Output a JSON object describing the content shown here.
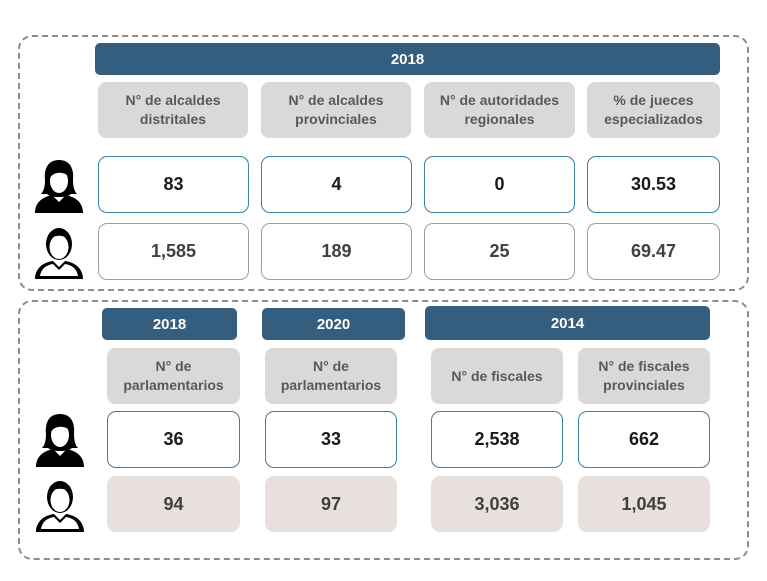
{
  "top": {
    "year": "2018",
    "headers": [
      "N° de alcaldes\ndistritales",
      "N° de alcaldes\nprovinciales",
      "N° de autoridades\nregionales",
      "% de jueces\nespecializados"
    ],
    "women": [
      "83",
      "4",
      "0",
      "30.53"
    ],
    "men": [
      "1,585",
      "189",
      "25",
      "69.47"
    ]
  },
  "bottom": {
    "years": [
      "2018",
      "2020",
      "2014"
    ],
    "headers": [
      "N° de\nparlamentarios",
      "N° de\nparlamentarios",
      "N° de fiscales",
      "N° de fiscales\nprovinciales"
    ],
    "women": [
      "36",
      "33",
      "2,538",
      "662"
    ],
    "men": [
      "94",
      "97",
      "3,036",
      "1,045"
    ]
  },
  "icons": {
    "women": "woman-icon",
    "men": "man-icon"
  },
  "colors": {
    "band": "#355e7e",
    "header": "#d9d9d9",
    "female_border": "#3a7fa6",
    "male_fill": "#e8e0dd"
  }
}
